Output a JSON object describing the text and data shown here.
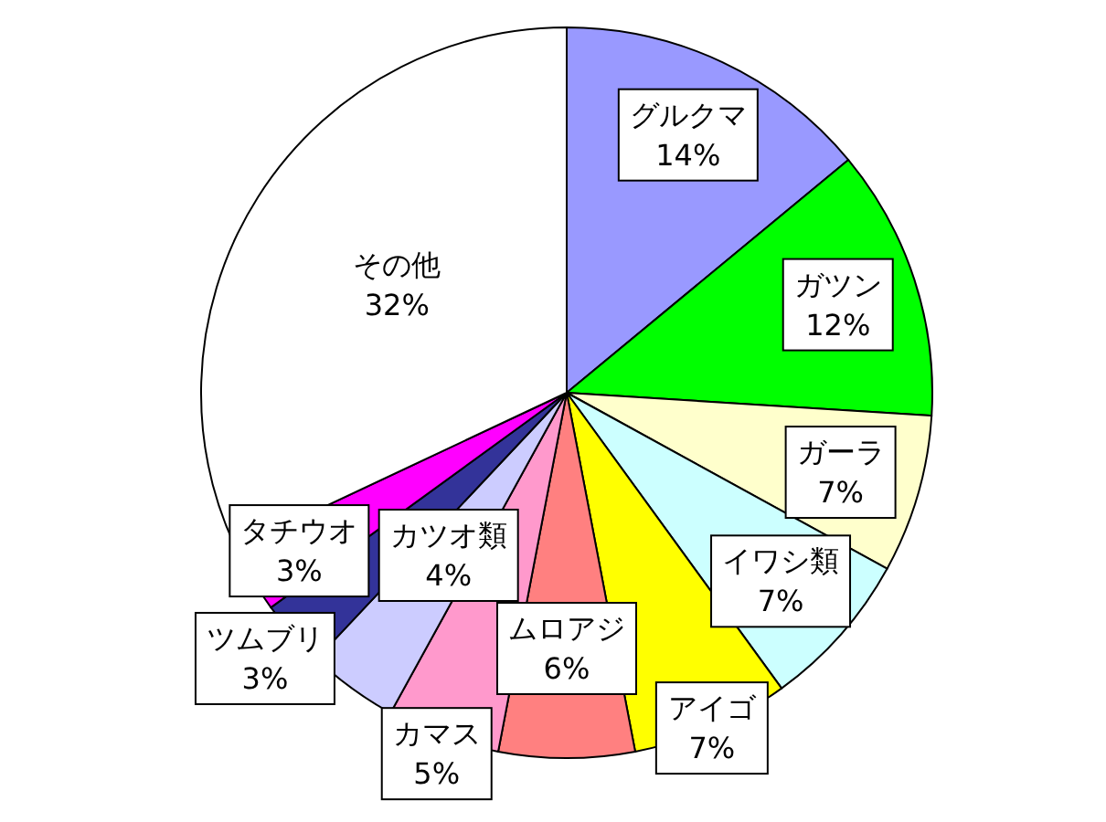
{
  "chart_data": {
    "type": "pie",
    "categories": [
      "グルクマ",
      "ガツン",
      "ガーラ",
      "イワシ類",
      "アイゴ",
      "ムロアジ",
      "カマス",
      "カツオ類",
      "ツムブリ",
      "タチウオ",
      "その他"
    ],
    "values": [
      14,
      12,
      7,
      7,
      7,
      6,
      5,
      4,
      3,
      3,
      32
    ],
    "value_labels": [
      "14%",
      "12%",
      "7%",
      "7%",
      "7%",
      "6%",
      "5%",
      "4%",
      "3%",
      "3%",
      "32%"
    ],
    "colors": [
      "#9999ff",
      "#00ff00",
      "#ffffcc",
      "#ccffff",
      "#ffff00",
      "#ff8080",
      "#ff99cc",
      "#ccccff",
      "#333399",
      "#ff00ff",
      "#ffffff"
    ]
  }
}
